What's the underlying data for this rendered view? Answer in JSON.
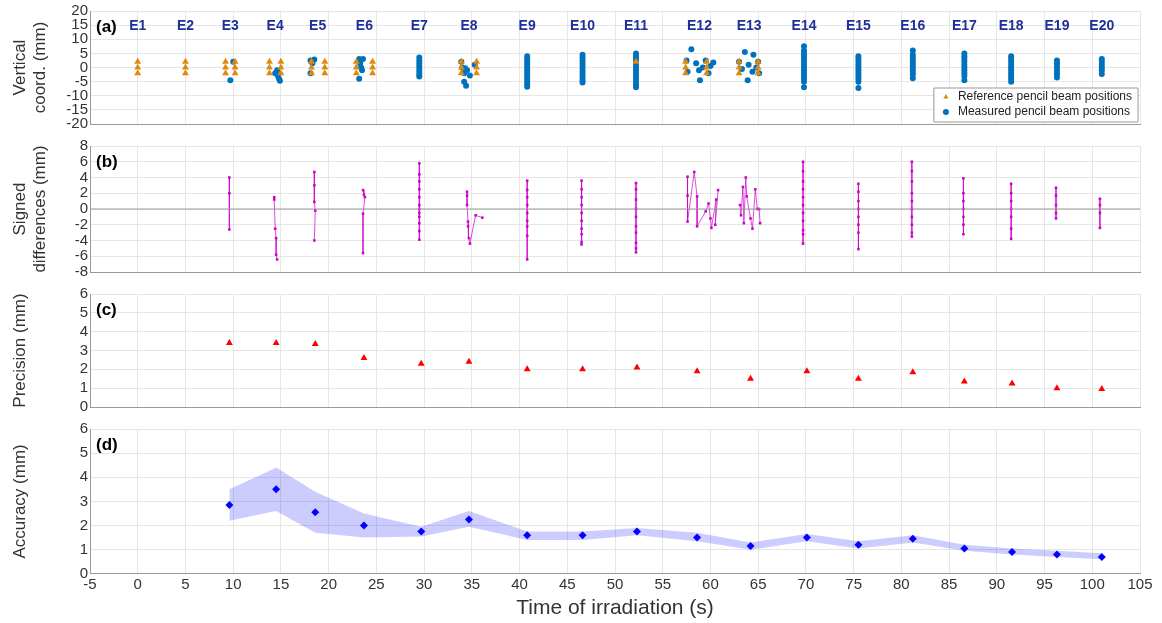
{
  "chart_data": [
    {
      "type": "scatter",
      "ylabel": "Vertical\ncoord. (mm)",
      "xlim": [
        -5,
        105
      ],
      "xticks": [
        -5,
        0,
        5,
        10,
        15,
        20,
        25,
        30,
        35,
        40,
        45,
        50,
        55,
        60,
        65,
        70,
        75,
        80,
        85,
        90,
        95,
        100,
        105
      ],
      "ylim": [
        -20,
        20
      ],
      "yticks": [
        -20,
        -15,
        -10,
        -5,
        0,
        5,
        10,
        15,
        20
      ],
      "grid": true,
      "tick_labels": "y",
      "legend": "bottom right",
      "annotations": [
        "(a)",
        "E1",
        "E2",
        "E3",
        "E4",
        "E5",
        "E6",
        "E7",
        "E8",
        "E9",
        "E10",
        "E11",
        "E12",
        "E13",
        "E14",
        "E15",
        "E16",
        "E17",
        "E18",
        "E19",
        "E20"
      ],
      "series": [
        {
          "name": "Reference pencil beam positions",
          "color": "#e0890f",
          "marker": "triangle",
          "x": [
            0,
            0,
            0,
            5,
            5,
            5,
            9.2,
            10.2,
            9.2,
            10.2,
            9.2,
            10.2,
            13.8,
            15,
            13.8,
            15,
            13.8,
            15,
            18.2,
            19.6,
            18.2,
            19.6,
            18.2,
            19.6,
            22.9,
            24.6,
            22.9,
            24.6,
            22.9,
            24.6,
            33.9,
            35.5,
            33.9,
            35.5,
            33.9,
            35.5,
            52.2,
            57.4,
            59.6,
            57.4,
            59.6,
            57.4,
            59.6,
            63,
            65,
            63,
            65,
            63,
            65
          ],
          "values": [
            2,
            0,
            -2,
            2,
            0,
            -2,
            2,
            2,
            0,
            0,
            -2,
            -2,
            2,
            2,
            0,
            0,
            -2,
            -2,
            2,
            2,
            0,
            0,
            -2,
            -2,
            2,
            2,
            0,
            0,
            -2,
            -2,
            2,
            2,
            0,
            0,
            -2,
            -2,
            2,
            2,
            2,
            0,
            0,
            -2,
            -2,
            2,
            2,
            0,
            0,
            -2,
            -2
          ]
        },
        {
          "name": "Measured pencil beam positions",
          "color": "#0072bd",
          "marker": "circle",
          "x": [
            10,
            9.7,
            14.6,
            14.4,
            14.7,
            14.8,
            14.9,
            18.1,
            18.3,
            18.1,
            18.5,
            23.2,
            23.6,
            23.3,
            23.4,
            23.5,
            23.2,
            29.5,
            29.5,
            29.5,
            29.5,
            29.5,
            29.5,
            29.5,
            29.5,
            33.9,
            34,
            34.3,
            34.5,
            34.2,
            34.8,
            34.2,
            34.4,
            35.3,
            40.8,
            40.8,
            40.8,
            40.8,
            40.8,
            40.8,
            40.8,
            40.8,
            40.8,
            40.8,
            40.8,
            40.8,
            46.6,
            46.6,
            46.6,
            46.6,
            46.6,
            46.6,
            46.6,
            46.6,
            46.6,
            46.6,
            46.6,
            52.2,
            52.2,
            52.2,
            52.2,
            52.2,
            52.2,
            52.2,
            52.2,
            52.2,
            52.2,
            52.2,
            52.2,
            52.2,
            58,
            57.5,
            58.5,
            59.5,
            60,
            57.6,
            58.8,
            59.8,
            58.9,
            60.3,
            59.2,
            63.6,
            64.5,
            63,
            64,
            65,
            63.3,
            64.4,
            65.1,
            63.9,
            64.8,
            69.8,
            69.8,
            69.8,
            69.8,
            69.8,
            69.8,
            69.8,
            69.8,
            69.8,
            69.8,
            69.8,
            69.8,
            69.8,
            69.8,
            75.5,
            75.5,
            75.5,
            75.5,
            75.5,
            75.5,
            75.5,
            75.5,
            75.5,
            75.5,
            75.5,
            81.2,
            81.2,
            81.2,
            81.2,
            81.2,
            81.2,
            81.2,
            81.2,
            81.2,
            81.2,
            86.6,
            86.6,
            86.6,
            86.6,
            86.6,
            86.6,
            86.6,
            86.6,
            86.6,
            86.6,
            91.5,
            91.5,
            91.5,
            91.5,
            91.5,
            91.5,
            91.5,
            91.5,
            91.5,
            91.5,
            96.3,
            96.3,
            96.3,
            96.3,
            96.3,
            96.3,
            96.3,
            101,
            101,
            101,
            101,
            101,
            101
          ],
          "values": [
            2,
            -4.5,
            -1,
            -2,
            -3,
            -4,
            -4.7,
            2.5,
            1.5,
            -2,
            2.8,
            3,
            3,
            1.5,
            0,
            -1,
            -4,
            3.5,
            2.5,
            1.5,
            0.5,
            -0.5,
            -1.5,
            -2.5,
            -3.2,
            2,
            0,
            -0.3,
            -1,
            -2,
            -2.8,
            -5,
            -6.5,
            1,
            4,
            3,
            2,
            1,
            0,
            -1,
            -2,
            -3,
            -4,
            -5,
            -6,
            -6.8,
            4.5,
            3.5,
            2.5,
            1.5,
            0.5,
            -0.5,
            -1.5,
            -2.5,
            -3.5,
            -4.5,
            -5.3,
            5,
            4,
            3,
            2,
            1,
            0,
            -1,
            -2,
            -3,
            -4,
            -5,
            -6,
            -7,
            6.5,
            2.5,
            1.5,
            2.5,
            0.5,
            -1.5,
            -1,
            -2,
            -4.5,
            1.8,
            0,
            5.5,
            4.5,
            2,
            1,
            2,
            -0.5,
            -1.5,
            -2,
            -4.5,
            0,
            7.5,
            6,
            5,
            4,
            3,
            2,
            1,
            0,
            -1,
            -2,
            -3,
            -4,
            -5,
            -7,
            4,
            3,
            2,
            1,
            0,
            -1,
            -2,
            -3,
            -4,
            -5,
            -7.3,
            6,
            4.5,
            3.5,
            2.5,
            1.5,
            0.5,
            -0.5,
            -1.5,
            -2.5,
            -3.8,
            5,
            4,
            3,
            2,
            1,
            0,
            -1,
            -2,
            -3,
            -4.5,
            4,
            3,
            2,
            1,
            0,
            -1,
            -2,
            -3,
            -4,
            -5,
            2.5,
            1.5,
            0.5,
            -0.5,
            -1.5,
            -2.5,
            -3.5,
            3,
            2,
            1,
            0,
            -1,
            -2.3
          ]
        }
      ]
    },
    {
      "type": "line",
      "ylabel": "Signed\ndifferences (mm)",
      "xlim": [
        -5,
        105
      ],
      "xticks": [
        -5,
        0,
        5,
        10,
        15,
        20,
        25,
        30,
        35,
        40,
        45,
        50,
        55,
        60,
        65,
        70,
        75,
        80,
        85,
        90,
        95,
        100,
        105
      ],
      "ylim": [
        -8,
        8
      ],
      "yticks": [
        -8,
        -6,
        -4,
        -2,
        0,
        2,
        4,
        6,
        8
      ],
      "grid": true,
      "tick_labels": "y",
      "annotations": [
        "(b)"
      ],
      "ref_lines": [
        {
          "axis": "y",
          "value": 0,
          "color": "#999999"
        }
      ],
      "series": [
        {
          "color": "#cc00cc",
          "marker": "square",
          "x": [
            9.6,
            9.6,
            9.6,
            null,
            14.3,
            14.3,
            14.4,
            14.5,
            14.5,
            14.6,
            null,
            18.5,
            18.5,
            18.5,
            18.6,
            18.5,
            null,
            23.6,
            23.7,
            23.8,
            23.6,
            23.6,
            null,
            29.5,
            29.5,
            29.5,
            29.5,
            29.5,
            29.5,
            29.5,
            29.5,
            29.5,
            29.5,
            29.5,
            29.5,
            null,
            34.5,
            34.5,
            34.5,
            34.6,
            34.6,
            34.7,
            34.8,
            35.4,
            36.1,
            null,
            40.8,
            40.8,
            40.8,
            40.8,
            40.8,
            40.8,
            40.8,
            40.8,
            40.8,
            null,
            46.5,
            46.5,
            46.5,
            46.5,
            46.5,
            46.5,
            46.5,
            46.5,
            46.5,
            46.5,
            null,
            52.2,
            52.2,
            52.2,
            52.2,
            52.2,
            52.2,
            52.2,
            52.2,
            52.2,
            52.2,
            null,
            57.6,
            57.6,
            57.6,
            58.3,
            58.6,
            58.6,
            59.5,
            59.8,
            60,
            60.1,
            60.6,
            60.5,
            60.8,
            null,
            63.1,
            63.2,
            63.4,
            63.5,
            63.7,
            63.8,
            64.2,
            64.4,
            64.7,
            64.9,
            65.1,
            65.2,
            null,
            69.7,
            69.7,
            69.7,
            69.7,
            69.7,
            69.7,
            69.7,
            69.7,
            69.7,
            69.7,
            69.7,
            null,
            75.5,
            75.5,
            75.5,
            75.5,
            75.5,
            75.5,
            75.5,
            75.5,
            null,
            81.1,
            81.1,
            81.1,
            81.1,
            81.1,
            81.1,
            81.1,
            81.1,
            81.1,
            81.1,
            null,
            86.5,
            86.5,
            86.5,
            86.5,
            86.5,
            86.5,
            86.5,
            null,
            91.5,
            91.5,
            91.5,
            91.5,
            91.5,
            91.5,
            91.5,
            null,
            96.2,
            96.2,
            96.2,
            96.2,
            96.2,
            null,
            100.8,
            100.8,
            100.8,
            100.8
          ],
          "values": [
            4,
            2,
            -2.6,
            null,
            1.5,
            1.2,
            -2.5,
            -3.7,
            -5.8,
            -6.4,
            null,
            4.7,
            3,
            0.9,
            -0.2,
            -4,
            null,
            2.4,
            1.8,
            1.5,
            -0.6,
            -5.6,
            null,
            5.8,
            4.4,
            3.5,
            2.5,
            1.5,
            0.5,
            0,
            -0.5,
            -1,
            -1.8,
            -2.8,
            -3.9,
            null,
            2.2,
            1.7,
            0.5,
            -1.6,
            -2.2,
            -3.7,
            -4.4,
            -0.8,
            -1.1,
            null,
            3.6,
            2.4,
            1.5,
            0.5,
            -0.5,
            -1.5,
            -2.2,
            -3.4,
            -6.4,
            null,
            3.6,
            2.5,
            1.5,
            0.5,
            -0.5,
            -1.5,
            -2.5,
            -3.2,
            -4.2,
            -4.5,
            null,
            3.3,
            2.5,
            1.2,
            0,
            -1,
            -2.2,
            -3,
            -4.3,
            -5,
            -5.5,
            null,
            4.1,
            1.7,
            -1.6,
            4.7,
            1.6,
            -2.2,
            -0.3,
            0.7,
            -1.2,
            -2.4,
            1.2,
            -2,
            2.4,
            null,
            0.5,
            -0.8,
            2.8,
            -1.8,
            4,
            1.6,
            -1.2,
            -2.5,
            2.5,
            0,
            0,
            -1.8,
            null,
            6,
            4.8,
            3.5,
            2.5,
            1.5,
            0.5,
            -0.5,
            -1.5,
            -2.7,
            -3.2,
            -4.4,
            null,
            3.2,
            2.2,
            1,
            0,
            -1,
            -2,
            -3,
            -5.1,
            null,
            6,
            4.8,
            3.5,
            2,
            1,
            0,
            -1,
            -2,
            -3,
            -3.5,
            null,
            3.9,
            2,
            1,
            0,
            -1,
            -2,
            -3.2,
            null,
            3.2,
            2,
            1,
            0,
            -1,
            -2.5,
            -3.8,
            null,
            2.7,
            1.7,
            0.5,
            -0.5,
            -1.2,
            null,
            1.3,
            0.5,
            -0.5,
            -2.4
          ]
        }
      ]
    },
    {
      "type": "scatter",
      "ylabel": "Precision (mm)",
      "xlim": [
        -5,
        105
      ],
      "xticks": [
        -5,
        0,
        5,
        10,
        15,
        20,
        25,
        30,
        35,
        40,
        45,
        50,
        55,
        60,
        65,
        70,
        75,
        80,
        85,
        90,
        95,
        100,
        105
      ],
      "ylim": [
        0,
        6
      ],
      "yticks": [
        0,
        1,
        2,
        3,
        4,
        5,
        6
      ],
      "grid": true,
      "tick_labels": "y",
      "annotations": [
        "(c)"
      ],
      "series": [
        {
          "color": "#ff0000",
          "marker": "triangle",
          "x": [
            9.6,
            14.5,
            18.6,
            23.7,
            29.7,
            34.7,
            40.8,
            46.6,
            52.3,
            58.6,
            64.2,
            70.1,
            75.5,
            81.2,
            86.6,
            91.6,
            96.3,
            101
          ],
          "values": [
            3.4,
            3.4,
            3.35,
            2.6,
            2.3,
            2.4,
            2,
            2,
            2.1,
            1.9,
            1.5,
            1.9,
            1.5,
            1.85,
            1.35,
            1.25,
            1,
            0.95
          ]
        }
      ]
    },
    {
      "type": "scatter",
      "ylabel": "Accuracy (mm)",
      "xlabel": "Time of irradiation (s)",
      "xlim": [
        -5,
        105
      ],
      "xticks": [
        -5,
        0,
        5,
        10,
        15,
        20,
        25,
        30,
        35,
        40,
        45,
        50,
        55,
        60,
        65,
        70,
        75,
        80,
        85,
        90,
        95,
        100,
        105
      ],
      "ylim": [
        0,
        6
      ],
      "yticks": [
        0,
        1,
        2,
        3,
        4,
        5,
        6
      ],
      "grid": true,
      "annotations": [
        "(d)"
      ],
      "series": [
        {
          "color": "#0000ff",
          "marker": "diamond",
          "x": [
            9.6,
            14.5,
            18.6,
            23.7,
            29.7,
            34.7,
            40.8,
            46.6,
            52.3,
            58.6,
            64.2,
            70.1,
            75.5,
            81.2,
            86.6,
            91.6,
            96.3,
            101
          ],
          "values": [
            2.85,
            3.5,
            2.55,
            2,
            1.75,
            2.25,
            1.6,
            1.6,
            1.75,
            1.5,
            1.15,
            1.5,
            1.2,
            1.45,
            1.05,
            0.9,
            0.8,
            0.7
          ],
          "lower": [
            2.2,
            2.6,
            1.7,
            1.5,
            1.55,
            1.95,
            1.4,
            1.4,
            1.6,
            1.35,
            1,
            1.35,
            1.05,
            1.3,
            0.95,
            0.8,
            0.7,
            0.6
          ],
          "upper": [
            3.5,
            4.4,
            3.4,
            2.5,
            1.95,
            2.6,
            1.75,
            1.75,
            1.9,
            1.7,
            1.3,
            1.65,
            1.35,
            1.6,
            1.2,
            1.05,
            0.95,
            0.85
          ]
        }
      ]
    }
  ]
}
